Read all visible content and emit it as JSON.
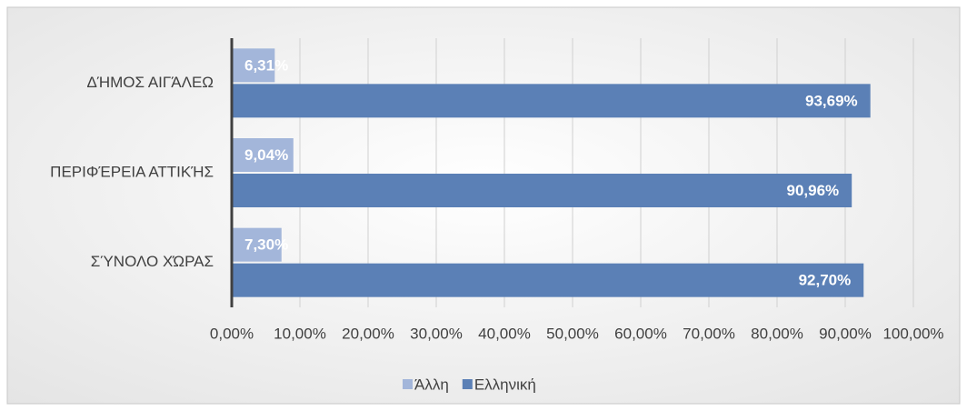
{
  "chart_data": {
    "type": "hbar",
    "categories": [
      "ΔΉΜΟΣ ΑΙΓΆΛΕΩ",
      "ΠΕΡΙΦΈΡΕΙΑ ΑΤΤΙΚΉΣ",
      "ΣΎΝΟΛΟ ΧΏΡΑΣ"
    ],
    "series": [
      {
        "name": "Άλλη",
        "color": "#a3b6da",
        "values": [
          6.31,
          9.04,
          7.3
        ],
        "value_labels": [
          "6,31%",
          "9,04%",
          "7,30%"
        ]
      },
      {
        "name": "Ελληνική",
        "color": "#5b80b6",
        "values": [
          93.69,
          90.96,
          92.7
        ],
        "value_labels": [
          "93,69%",
          "90,96%",
          "92,70%"
        ]
      }
    ],
    "xlim": [
      0,
      100
    ],
    "xticks": [
      {
        "value": 0,
        "label": "0,00%"
      },
      {
        "value": 10,
        "label": "10,00%"
      },
      {
        "value": 20,
        "label": "20,00%"
      },
      {
        "value": 30,
        "label": "30,00%"
      },
      {
        "value": 40,
        "label": "40,00%"
      },
      {
        "value": 50,
        "label": "50,00%"
      },
      {
        "value": 60,
        "label": "60,00%"
      },
      {
        "value": 70,
        "label": "70,00%"
      },
      {
        "value": 80,
        "label": "80,00%"
      },
      {
        "value": 90,
        "label": "90,00%"
      },
      {
        "value": 100,
        "label": "100,00%"
      }
    ],
    "grid": true,
    "legend": "bottom"
  }
}
